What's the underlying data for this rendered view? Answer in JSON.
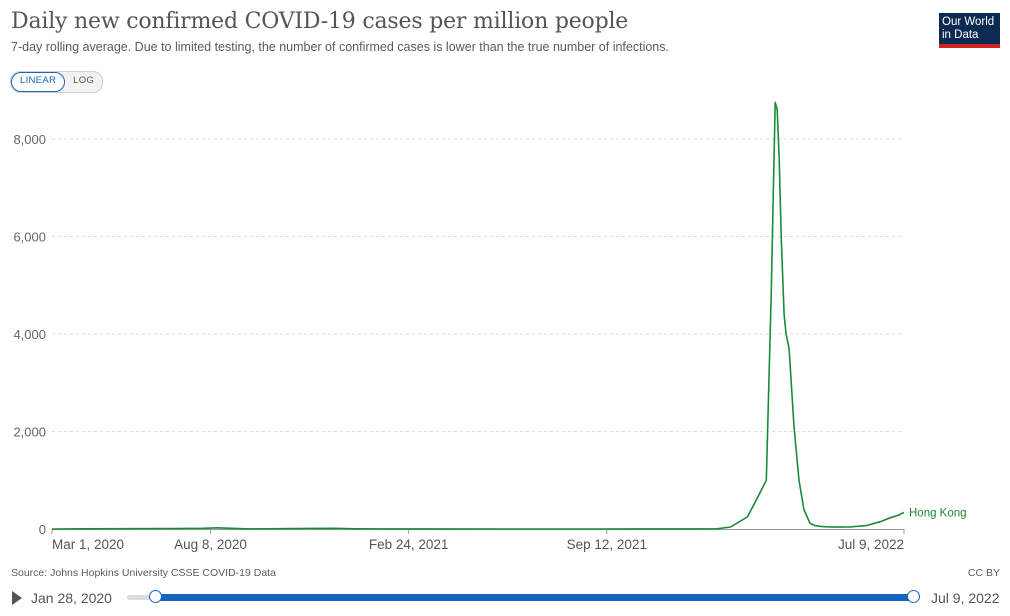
{
  "header": {
    "title": "Daily new confirmed COVID-19 cases per million people",
    "subtitle": "7-day rolling average. Due to limited testing, the number of confirmed cases is lower than the true number of infections.",
    "logo_line1": "Our World",
    "logo_line2": "in Data"
  },
  "controls": {
    "linear_label": "LINEAR",
    "log_label": "LOG",
    "active_scale": "linear"
  },
  "footer": {
    "source": "Source: Johns Hopkins University CSSE COVID-19 Data",
    "license": "CC BY"
  },
  "timeline": {
    "start_label": "Jan 28, 2020",
    "end_label": "Jul 9, 2022",
    "selected_start_fraction": 0.037,
    "selected_end_fraction": 1.0
  },
  "colors": {
    "series": "#1a8a3a",
    "accent": "#1565c0",
    "logo_bg": "#0d2b52",
    "logo_bar": "#ce261e"
  },
  "chart_data": {
    "type": "line",
    "title": "Daily new confirmed COVID-19 cases per million people",
    "xlabel": "",
    "ylabel": "",
    "x_ticks": [
      "Mar 1, 2020",
      "Aug 8, 2020",
      "Feb 24, 2021",
      "Sep 12, 2021",
      "Jul 9, 2022"
    ],
    "y_ticks": [
      0,
      2000,
      4000,
      6000,
      8000
    ],
    "y_tick_labels": [
      "0",
      "2,000",
      "4,000",
      "6,000",
      "8,000"
    ],
    "xlim": [
      "2020-03-01",
      "2022-07-09"
    ],
    "ylim": [
      0,
      8800
    ],
    "grid": "horizontal dashed",
    "legend": "end-of-line label",
    "series": [
      {
        "name": "Hong Kong",
        "x": [
          "2020-03-01",
          "2020-04-01",
          "2020-07-01",
          "2020-08-01",
          "2020-08-15",
          "2020-09-15",
          "2020-11-01",
          "2020-12-10",
          "2021-01-01",
          "2021-02-01",
          "2021-03-15",
          "2021-06-01",
          "2021-09-01",
          "2021-12-01",
          "2022-01-01",
          "2022-01-15",
          "2022-02-01",
          "2022-02-10",
          "2022-02-20",
          "2022-02-25",
          "2022-03-01",
          "2022-03-03",
          "2022-03-05",
          "2022-03-07",
          "2022-03-10",
          "2022-03-12",
          "2022-03-15",
          "2022-03-20",
          "2022-03-25",
          "2022-03-30",
          "2022-04-05",
          "2022-04-10",
          "2022-04-15",
          "2022-04-22",
          "2022-05-01",
          "2022-05-15",
          "2022-06-01",
          "2022-06-15",
          "2022-06-25",
          "2022-07-03",
          "2022-07-09"
        ],
        "y": [
          0,
          5,
          10,
          15,
          25,
          3,
          8,
          15,
          5,
          2,
          2,
          0,
          0,
          2,
          5,
          40,
          250,
          600,
          1000,
          4800,
          8750,
          8600,
          7600,
          6000,
          4400,
          4000,
          3700,
          2100,
          1000,
          400,
          120,
          70,
          55,
          45,
          38,
          40,
          70,
          150,
          230,
          280,
          340
        ]
      }
    ]
  }
}
